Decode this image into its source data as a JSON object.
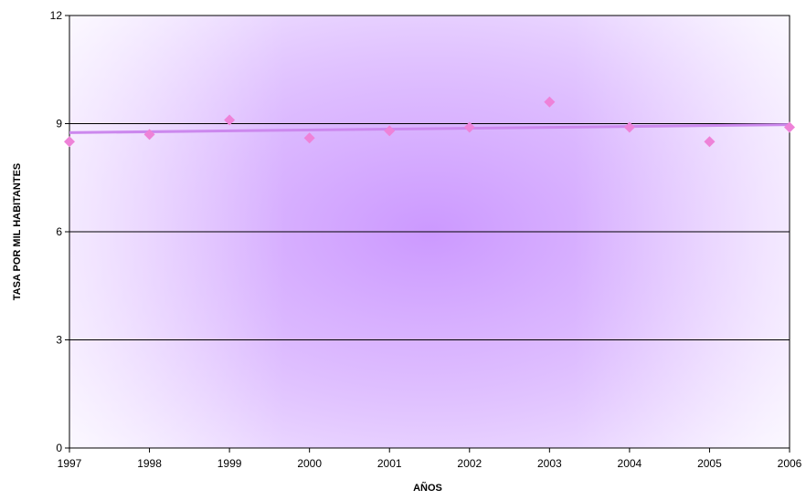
{
  "chart_data": {
    "type": "scatter",
    "title": "",
    "xlabel": "AÑOS",
    "ylabel": "TASA POR MIL HABITANTES",
    "x": [
      1997,
      1998,
      1999,
      2000,
      2001,
      2002,
      2003,
      2004,
      2005,
      2006
    ],
    "y": [
      8.5,
      8.7,
      9.1,
      8.6,
      8.8,
      8.9,
      9.6,
      8.9,
      8.5,
      8.9
    ],
    "xlim": [
      1997,
      2006
    ],
    "ylim": [
      0,
      12
    ],
    "y_ticks": [
      "0",
      "3",
      "6",
      "9",
      "12"
    ],
    "x_ticks": [
      "1997",
      "1998",
      "1999",
      "2000",
      "2001",
      "2002",
      "2003",
      "2004",
      "2005",
      "2006"
    ],
    "trendline": {
      "type": "linear",
      "y": [
        8.75,
        8.97
      ]
    },
    "grid": "horizontal",
    "legend": "none",
    "colors": {
      "marker": "#ee82d8",
      "trend": "#cc88ee",
      "plot_center": "#cc99ff",
      "plot_edge": "#f6efff",
      "grid": "#000000"
    }
  }
}
